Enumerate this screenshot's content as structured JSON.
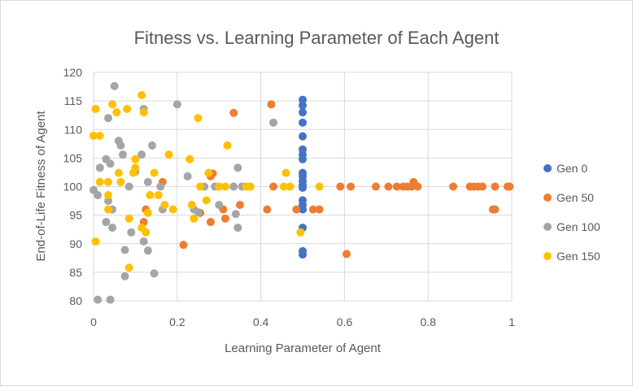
{
  "chart_data": {
    "type": "scatter",
    "title": "Fitness vs. Learning Parameter of Each Agent",
    "xlabel": "Learning Parameter of Agent",
    "ylabel": "End-of-Life Fitness of Agent",
    "xlim": [
      0,
      1
    ],
    "ylim": [
      80,
      120
    ],
    "xticks": [
      "0",
      "0.2",
      "0.4",
      "0.6",
      "0.8",
      "1"
    ],
    "yticks": [
      "80",
      "85",
      "90",
      "95",
      "100",
      "105",
      "110",
      "115",
      "120"
    ],
    "grid": true,
    "legend_position": "right",
    "series": [
      {
        "name": "Gen 0",
        "color": "#4472c4",
        "points": [
          [
            0.5,
            115.2
          ],
          [
            0.5,
            114.2
          ],
          [
            0.5,
            113.0
          ],
          [
            0.5,
            111.2
          ],
          [
            0.5,
            108.8
          ],
          [
            0.5,
            106.5
          ],
          [
            0.5,
            105.6
          ],
          [
            0.5,
            104.8
          ],
          [
            0.5,
            102.4
          ],
          [
            0.5,
            101.8
          ],
          [
            0.5,
            101.0
          ],
          [
            0.5,
            100.3
          ],
          [
            0.5,
            99.8
          ],
          [
            0.5,
            97.6
          ],
          [
            0.5,
            96.8
          ],
          [
            0.5,
            96.0
          ],
          [
            0.5,
            92.8
          ],
          [
            0.5,
            88.7
          ],
          [
            0.5,
            88.1
          ]
        ]
      },
      {
        "name": "Gen 50",
        "color": "#ed7d31",
        "points": [
          [
            0.335,
            112.9
          ],
          [
            0.425,
            114.4
          ],
          [
            0.285,
            102.3
          ],
          [
            0.28,
            101.8
          ],
          [
            0.165,
            100.8
          ],
          [
            0.12,
            93.8
          ],
          [
            0.125,
            96.0
          ],
          [
            0.215,
            89.8
          ],
          [
            0.255,
            95.4
          ],
          [
            0.28,
            93.8
          ],
          [
            0.31,
            96.0
          ],
          [
            0.315,
            94.4
          ],
          [
            0.35,
            96.8
          ],
          [
            0.415,
            96.0
          ],
          [
            0.43,
            100.0
          ],
          [
            0.485,
            96.0
          ],
          [
            0.525,
            96.0
          ],
          [
            0.54,
            96.0
          ],
          [
            0.59,
            100.0
          ],
          [
            0.605,
            88.2
          ],
          [
            0.615,
            100.0
          ],
          [
            0.675,
            100.0
          ],
          [
            0.705,
            100.0
          ],
          [
            0.725,
            100.0
          ],
          [
            0.74,
            100.0
          ],
          [
            0.75,
            100.0
          ],
          [
            0.76,
            100.0
          ],
          [
            0.765,
            100.8
          ],
          [
            0.775,
            100.0
          ],
          [
            0.86,
            100.0
          ],
          [
            0.9,
            100.0
          ],
          [
            0.91,
            100.0
          ],
          [
            0.92,
            100.0
          ],
          [
            0.93,
            100.0
          ],
          [
            0.955,
            96.0
          ],
          [
            0.96,
            96.0
          ],
          [
            0.96,
            100.0
          ],
          [
            0.99,
            100.0
          ],
          [
            0.995,
            100.0
          ]
        ]
      },
      {
        "name": "Gen 100",
        "color": "#a5a5a5",
        "points": [
          [
            0.0,
            99.4
          ],
          [
            0.01,
            98.5
          ],
          [
            0.015,
            103.3
          ],
          [
            0.03,
            104.8
          ],
          [
            0.035,
            112.0
          ],
          [
            0.03,
            93.8
          ],
          [
            0.035,
            97.5
          ],
          [
            0.04,
            104.0
          ],
          [
            0.045,
            96.0
          ],
          [
            0.045,
            92.8
          ],
          [
            0.05,
            117.6
          ],
          [
            0.06,
            108.0
          ],
          [
            0.065,
            107.2
          ],
          [
            0.07,
            105.6
          ],
          [
            0.075,
            88.9
          ],
          [
            0.075,
            84.3
          ],
          [
            0.085,
            100.0
          ],
          [
            0.09,
            92.0
          ],
          [
            0.1,
            102.6
          ],
          [
            0.115,
            105.6
          ],
          [
            0.12,
            113.6
          ],
          [
            0.12,
            90.4
          ],
          [
            0.13,
            88.8
          ],
          [
            0.13,
            100.8
          ],
          [
            0.14,
            107.2
          ],
          [
            0.145,
            84.8
          ],
          [
            0.16,
            100.0
          ],
          [
            0.165,
            96.0
          ],
          [
            0.2,
            114.4
          ],
          [
            0.225,
            101.8
          ],
          [
            0.24,
            96.0
          ],
          [
            0.25,
            95.5
          ],
          [
            0.265,
            100.0
          ],
          [
            0.29,
            100.0
          ],
          [
            0.3,
            96.8
          ],
          [
            0.335,
            100.0
          ],
          [
            0.34,
            95.2
          ],
          [
            0.345,
            103.3
          ],
          [
            0.345,
            92.8
          ],
          [
            0.355,
            100.0
          ],
          [
            0.43,
            111.2
          ],
          [
            0.01,
            80.2
          ],
          [
            0.04,
            80.2
          ]
        ]
      },
      {
        "name": "Gen 150",
        "color": "#ffc000",
        "points": [
          [
            0.0,
            108.9
          ],
          [
            0.005,
            113.6
          ],
          [
            0.005,
            90.4
          ],
          [
            0.015,
            108.9
          ],
          [
            0.015,
            100.8
          ],
          [
            0.035,
            100.8
          ],
          [
            0.035,
            98.5
          ],
          [
            0.035,
            96.0
          ],
          [
            0.045,
            114.4
          ],
          [
            0.055,
            113.0
          ],
          [
            0.06,
            102.4
          ],
          [
            0.065,
            100.8
          ],
          [
            0.08,
            113.6
          ],
          [
            0.085,
            94.4
          ],
          [
            0.085,
            85.8
          ],
          [
            0.095,
            102.4
          ],
          [
            0.1,
            104.8
          ],
          [
            0.1,
            103.3
          ],
          [
            0.115,
            116.0
          ],
          [
            0.12,
            113.0
          ],
          [
            0.115,
            92.8
          ],
          [
            0.125,
            92.0
          ],
          [
            0.13,
            95.4
          ],
          [
            0.135,
            98.5
          ],
          [
            0.145,
            102.4
          ],
          [
            0.155,
            98.5
          ],
          [
            0.17,
            96.8
          ],
          [
            0.18,
            105.6
          ],
          [
            0.19,
            96.0
          ],
          [
            0.23,
            104.8
          ],
          [
            0.235,
            96.8
          ],
          [
            0.24,
            94.4
          ],
          [
            0.25,
            112.0
          ],
          [
            0.255,
            100.0
          ],
          [
            0.27,
            97.6
          ],
          [
            0.275,
            102.4
          ],
          [
            0.3,
            100.0
          ],
          [
            0.315,
            100.0
          ],
          [
            0.32,
            107.2
          ],
          [
            0.365,
            100.0
          ],
          [
            0.375,
            100.0
          ],
          [
            0.455,
            100.0
          ],
          [
            0.46,
            102.4
          ],
          [
            0.47,
            100.0
          ],
          [
            0.495,
            92.0
          ],
          [
            0.54,
            100.0
          ]
        ]
      }
    ]
  }
}
